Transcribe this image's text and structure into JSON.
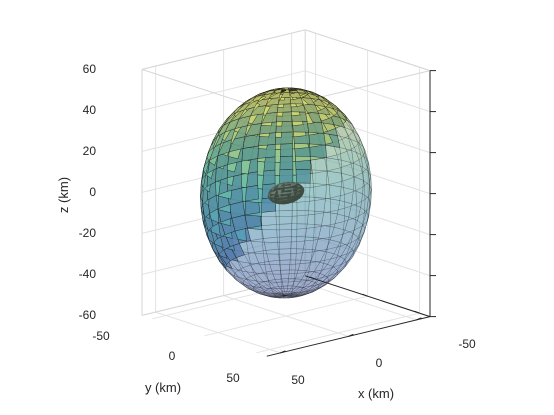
{
  "chart_data": {
    "type": "surface",
    "title": "",
    "xlabel": "x (km)",
    "ylabel": "y (km)",
    "zlabel": "z (km)",
    "xlim": [
      -60,
      60
    ],
    "ylim": [
      -60,
      60
    ],
    "zlim": [
      -60,
      60
    ],
    "x_ticks": [
      "-50",
      "0",
      "50"
    ],
    "y_ticks": [
      "-50",
      "0",
      "50"
    ],
    "z_ticks": [
      "-60",
      "-40",
      "-20",
      "0",
      "20",
      "40",
      "60"
    ],
    "grid": true,
    "colormap": "parula",
    "face_alpha": 0.6,
    "objects": [
      {
        "shape": "sphere",
        "center": [
          0,
          0,
          0
        ],
        "radius": 50,
        "n_lat": 24,
        "n_lon": 30
      },
      {
        "shape": "ellipsoid",
        "center": [
          0,
          0,
          0
        ],
        "radii": [
          12,
          8,
          5
        ]
      }
    ]
  }
}
